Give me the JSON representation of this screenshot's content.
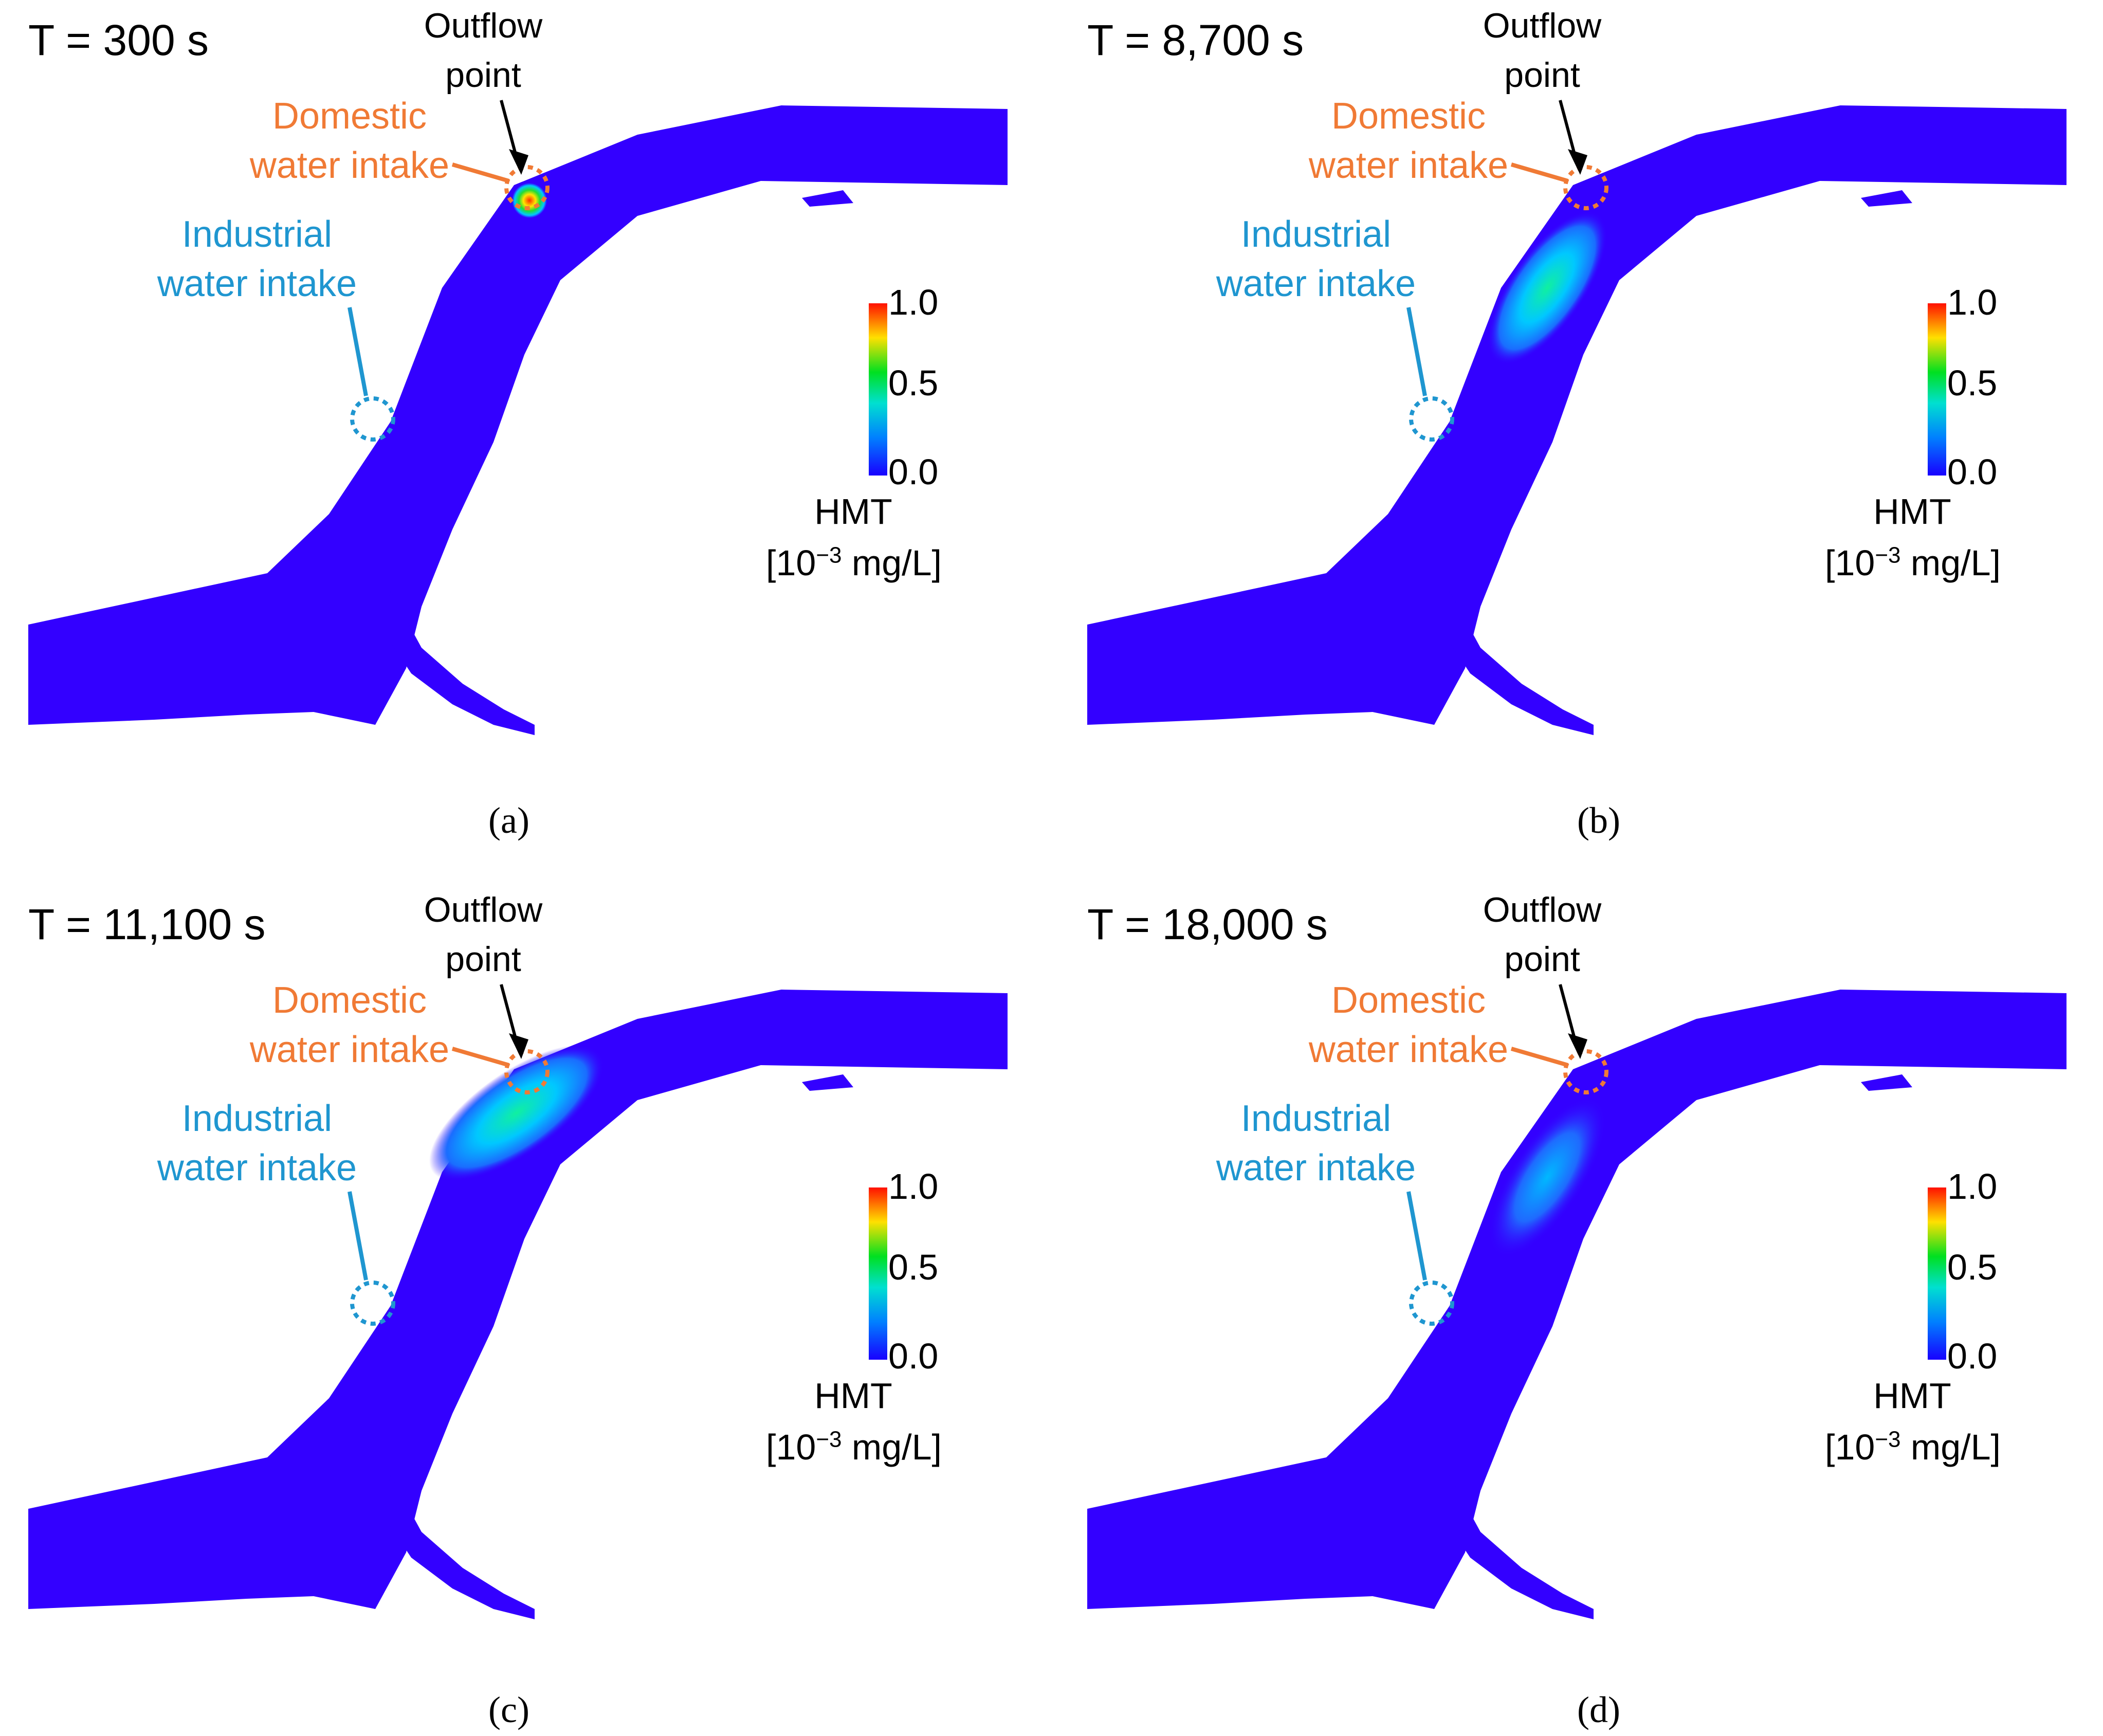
{
  "panels": [
    {
      "caption": "(a)",
      "time": "T = 300 s",
      "plume": "point"
    },
    {
      "caption": "(b)",
      "time": "T = 8,700 s",
      "plume": "elongated"
    },
    {
      "caption": "(c)",
      "time": "T = 11,100 s",
      "plume": "spread"
    },
    {
      "caption": "(d)",
      "time": "T = 18,000 s",
      "plume": "diffuse"
    }
  ],
  "labels": {
    "outflow_line1": "Outflow",
    "outflow_line2": "point",
    "domestic_line1": "Domestic",
    "domestic_line2": "water intake",
    "industrial_line1": "Industrial",
    "industrial_line2": "water intake"
  },
  "colorbar": {
    "title": "HMT",
    "unit_open": "[10",
    "unit_exp": "−3",
    "unit_close": " mg/L]",
    "ticks": [
      "1.0",
      "0.5",
      "0.0"
    ],
    "min": 0.0,
    "max": 1.0
  },
  "colors": {
    "water": "#3300FF",
    "domestic": "#F07A35",
    "industrial": "#1F96D0",
    "arrow": "#000000"
  }
}
